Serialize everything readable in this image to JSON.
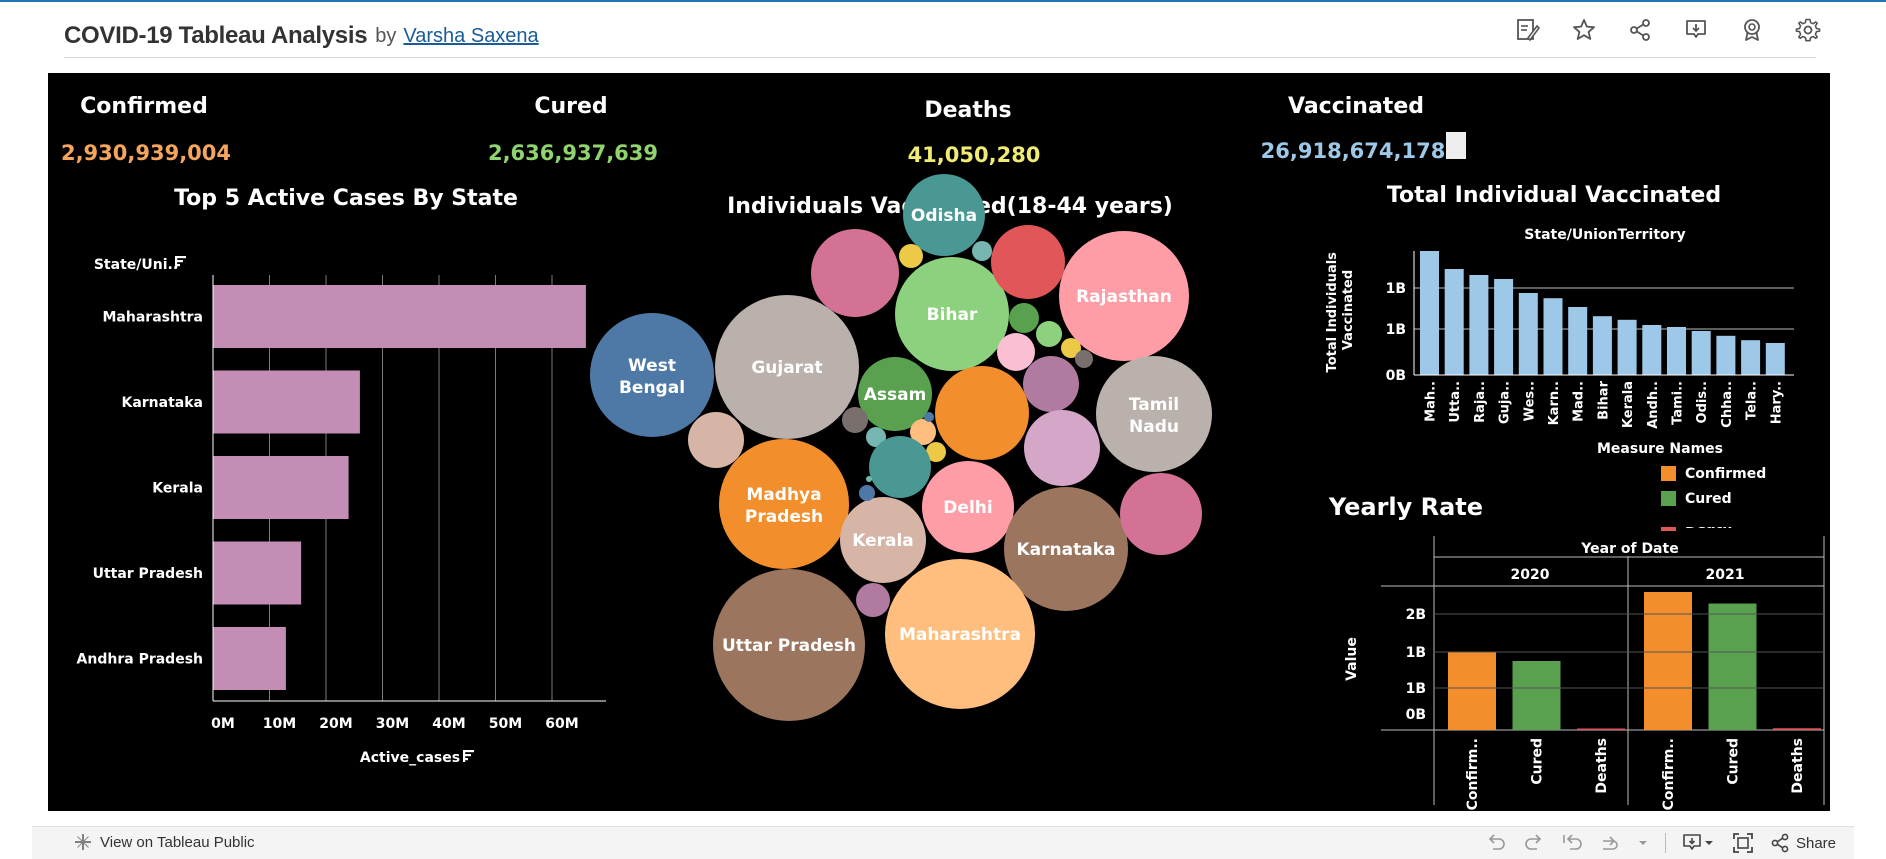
{
  "header": {
    "title": "COVID-19 Tableau Analysis",
    "by": "by",
    "author": "Varsha Saxena"
  },
  "toolbar": {
    "icons": [
      "edit-icon",
      "star-icon",
      "share-icon",
      "download-icon",
      "badge-icon",
      "gear-icon"
    ]
  },
  "kpis": {
    "confirmed": {
      "label": "Confirmed",
      "value": "2,930,939,004",
      "color": "#F5A55E"
    },
    "cured": {
      "label": "Cured",
      "value": "2,636,937,639",
      "color": "#8FD46E"
    },
    "deaths": {
      "label": "Deaths",
      "value": "41,050,280",
      "color": "#F0EB73"
    },
    "vaccinated": {
      "label": "Vaccinated",
      "value": "26,918,674,178",
      "color": "#9EC8E8"
    }
  },
  "chart_data": [
    {
      "type": "bar",
      "orientation": "horizontal",
      "title": "Top 5 Active Cases By State",
      "ylabel": "State/Uni..",
      "xlabel": "Active_cases",
      "categories": [
        "Maharashtra",
        "Karnataka",
        "Kerala",
        "Uttar Pradesh",
        "Andhra Pradesh"
      ],
      "values": [
        66000000,
        26000000,
        24000000,
        15600000,
        12900000
      ],
      "xticks": [
        "0M",
        "10M",
        "20M",
        "30M",
        "40M",
        "50M",
        "60M"
      ],
      "xlim": [
        0,
        68000000
      ],
      "color": "#C48DB6",
      "grid": true
    },
    {
      "type": "bubble",
      "title": "Individuals Vaccinated(18-44 years)",
      "labels": [
        "Odisha",
        "Bihar",
        "Rajasthan",
        "Gujarat",
        "West Bengal",
        "Assam",
        "Tamil Nadu",
        "Madhya Pradesh",
        "Delhi",
        "Kerala",
        "Karnataka",
        "Uttar Pradesh",
        "Maharashtra"
      ],
      "colors": [
        "#4E79A7",
        "#F28E2B",
        "#E15759",
        "#76B7B2",
        "#59A14F",
        "#EDC948",
        "#B07AA1",
        "#FF9DA7",
        "#9C755F",
        "#BAB0AC",
        "#8CD17D",
        "#D37295",
        "#FABFD2",
        "#D4A6C8",
        "#FFBE7D",
        "#D7B5A6",
        "#79706E",
        "#499894"
      ]
    },
    {
      "type": "bar",
      "title": "Total Individual Vaccinated",
      "header": "State/UnionTerritory",
      "ylabel": "Total Individuals Vaccinated",
      "categories": [
        "Mah..",
        "Utta..",
        "Raja..",
        "Guja..",
        "Wes..",
        "Karn..",
        "Mad..",
        "Bihar",
        "Kerala",
        "Andh..",
        "Tami..",
        "Odis..",
        "Chha..",
        "Tela..",
        "Hary.."
      ],
      "values": [
        3.1,
        2.65,
        2.5,
        2.4,
        2.05,
        1.92,
        1.7,
        1.47,
        1.38,
        1.25,
        1.2,
        1.1,
        0.98,
        0.87,
        0.8
      ],
      "yticks": [
        "1B",
        "1B",
        "0B"
      ],
      "ylim": [
        0,
        3.2
      ],
      "color": "#9DC8E8",
      "grid": true
    },
    {
      "type": "bar",
      "title": "Yearly Rate",
      "header": "Year of Date",
      "ylabel": "Value",
      "groups": [
        "2020",
        "2021"
      ],
      "categories": [
        "Confirm..",
        "Cured",
        "Deaths"
      ],
      "series": [
        {
          "name": "2020",
          "values": [
            1.36,
            1.2,
            0.02
          ]
        },
        {
          "name": "2021",
          "values": [
            2.4,
            2.2,
            0.03
          ]
        }
      ],
      "category_colors": [
        "#F28E2B",
        "#59A14F",
        "#E15759"
      ],
      "yticks": [
        "2B",
        "1B",
        "1B",
        "0B"
      ],
      "ylim": [
        0,
        2.5
      ],
      "legend": {
        "title": "Measure Names",
        "items": [
          "Confirmed",
          "Cured",
          "Death"
        ],
        "colors": [
          "#F28E2B",
          "#59A14F",
          "#E15759"
        ]
      }
    }
  ],
  "footer": {
    "view_label": "View on Tableau Public",
    "share_label": "Share",
    "icons": [
      "undo-icon",
      "redo-icon",
      "revert-icon",
      "refresh-icon",
      "dropdown-icon",
      "download-icon",
      "fullscreen-icon",
      "share-icon"
    ]
  }
}
